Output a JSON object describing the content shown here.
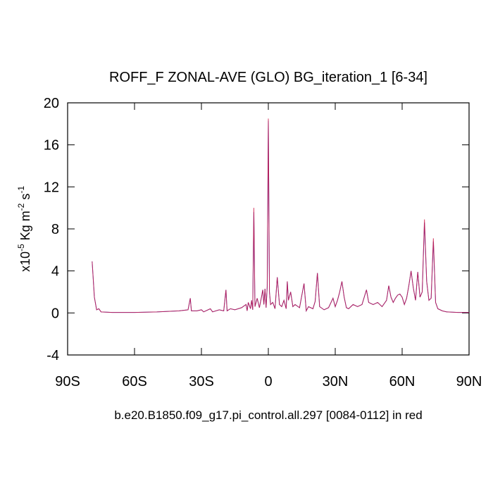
{
  "chart_data": {
    "type": "line",
    "title": "ROFF_F ZONAL-AVE (GLO) BG_iteration_1 [6-34]",
    "subtitle": "b.e20.B1850.f09_g17.pi_control.all.297 [0084-0112] in red",
    "ylabel": [
      "x10",
      "-5",
      " Kg m",
      "-2",
      " s",
      "-1"
    ],
    "x": [
      -79,
      -78,
      -77,
      -76,
      -75,
      -70,
      -60,
      -50,
      -45,
      -40,
      -36,
      -35,
      -34.5,
      -32,
      -30,
      -29,
      -26,
      -25,
      -22,
      -20,
      -19,
      -18.5,
      -17,
      -15,
      -12,
      -10,
      -9.5,
      -9,
      -8,
      -7.5,
      -7,
      -6.5,
      -6,
      -5,
      -4,
      -3,
      -2.5,
      -2,
      -1.5,
      -1,
      -0.5,
      0,
      0.5,
      1,
      2,
      3,
      4,
      5,
      6,
      7,
      8,
      8.5,
      9,
      10,
      11,
      12,
      14,
      16,
      17,
      18,
      20,
      21,
      22,
      23,
      25,
      27,
      29,
      30,
      31,
      32,
      33,
      34,
      35,
      36,
      38,
      40,
      42,
      44,
      45,
      47,
      49,
      51,
      53,
      54,
      55,
      56,
      57,
      58,
      59,
      60,
      61,
      62,
      63,
      64,
      65,
      66,
      67,
      68,
      69,
      70,
      71,
      72,
      73,
      74,
      75,
      76,
      78,
      80,
      85,
      90
    ],
    "series": [
      {
        "color": "#2233cc",
        "values": [
          4.9,
          1.5,
          0.3,
          0.4,
          0.1,
          0.05,
          0.05,
          0.1,
          0.15,
          0.2,
          0.3,
          1.4,
          0.2,
          0.2,
          0.3,
          0.1,
          0.4,
          0.1,
          0.3,
          0.2,
          2.2,
          0.2,
          0.4,
          0.3,
          0.5,
          0.8,
          0.2,
          1.0,
          0.4,
          1.2,
          0.3,
          9.6,
          0.6,
          1.4,
          0.5,
          1.6,
          2.2,
          0.8,
          2.3,
          0.5,
          2.5,
          18.3,
          2.0,
          0.8,
          1.0,
          0.4,
          3.4,
          0.8,
          0.6,
          1.2,
          0.4,
          3.0,
          1.2,
          2.0,
          0.6,
          0.8,
          0.5,
          2.8,
          0.2,
          0.6,
          0.4,
          1.1,
          3.8,
          0.6,
          0.3,
          0.5,
          1.4,
          0.6,
          1.2,
          2.0,
          3.0,
          1.5,
          0.5,
          0.4,
          0.8,
          0.6,
          0.8,
          2.2,
          1.0,
          0.8,
          1.0,
          0.6,
          1.2,
          2.6,
          1.5,
          1.0,
          1.4,
          1.7,
          1.8,
          1.5,
          0.8,
          1.4,
          2.6,
          4.0,
          2.4,
          1.2,
          3.9,
          1.5,
          2.0,
          8.6,
          3.0,
          1.2,
          1.4,
          6.8,
          1.0,
          0.4,
          0.2,
          0.1,
          0.05,
          0.05
        ]
      },
      {
        "color": "#cc1040",
        "values": [
          4.9,
          1.5,
          0.3,
          0.4,
          0.1,
          0.05,
          0.05,
          0.1,
          0.15,
          0.2,
          0.3,
          1.4,
          0.2,
          0.2,
          0.3,
          0.1,
          0.4,
          0.1,
          0.3,
          0.2,
          2.2,
          0.2,
          0.4,
          0.3,
          0.5,
          0.8,
          0.2,
          1.0,
          0.4,
          1.2,
          0.3,
          10.0,
          0.6,
          1.4,
          0.5,
          1.6,
          2.2,
          0.8,
          2.3,
          0.5,
          2.5,
          18.5,
          2.0,
          0.8,
          1.0,
          0.4,
          3.4,
          0.8,
          0.6,
          1.2,
          0.4,
          3.0,
          1.2,
          2.0,
          0.6,
          0.8,
          0.5,
          2.8,
          0.2,
          0.6,
          0.4,
          1.1,
          3.8,
          0.6,
          0.3,
          0.5,
          1.4,
          0.6,
          1.2,
          2.0,
          3.0,
          1.5,
          0.5,
          0.4,
          0.8,
          0.6,
          0.8,
          2.2,
          1.0,
          0.8,
          1.0,
          0.6,
          1.2,
          2.6,
          1.5,
          1.0,
          1.4,
          1.7,
          1.8,
          1.5,
          0.8,
          1.4,
          2.6,
          4.0,
          2.4,
          1.2,
          3.9,
          1.5,
          2.0,
          8.9,
          3.0,
          1.2,
          1.4,
          7.1,
          1.0,
          0.4,
          0.2,
          0.1,
          0.05,
          0.05
        ]
      }
    ],
    "xlim": [
      -90,
      90
    ],
    "xticks": [
      {
        "value": -90,
        "label": "90S"
      },
      {
        "value": -60,
        "label": "60S"
      },
      {
        "value": -30,
        "label": "30S"
      },
      0,
      {
        "value": 30,
        "label": "30N"
      },
      {
        "value": 60,
        "label": "60N"
      },
      {
        "value": 90,
        "label": "90N"
      }
    ],
    "ylim": [
      -4,
      20
    ],
    "yticks": [
      -4,
      0,
      4,
      8,
      12,
      16,
      20
    ]
  }
}
